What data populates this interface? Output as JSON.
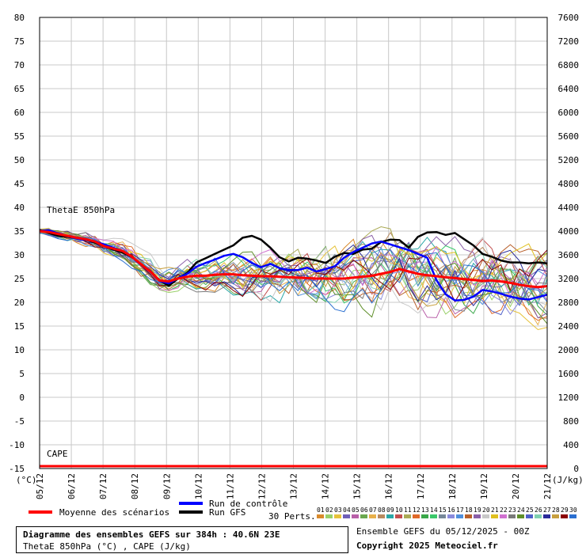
{
  "chart_data": {
    "type": "line",
    "title": "Diagramme des ensembles GEFS sur 384h : 40.6N 23E",
    "subtitle": "ThetaE 850hPa (°C) , CAPE (J/kg)",
    "panel_labels": {
      "thetae": "ThetaE 850hPa",
      "cape": "CAPE"
    },
    "left_axis": {
      "unit": "(°C)",
      "range": [
        -15,
        80
      ],
      "ticks": [
        80,
        75,
        70,
        65,
        60,
        55,
        50,
        45,
        40,
        35,
        30,
        25,
        20,
        15,
        10,
        5,
        0,
        -5,
        -10,
        -15
      ]
    },
    "right_axis": {
      "unit": "(J/kg)",
      "range": [
        0,
        7600
      ],
      "ticks": [
        7600,
        7200,
        6800,
        6400,
        6000,
        5600,
        5200,
        4800,
        4400,
        4000,
        3600,
        3200,
        2800,
        2400,
        2000,
        1600,
        1200,
        800,
        400,
        0
      ]
    },
    "x_axis": {
      "categories": [
        "05/12",
        "06/12",
        "07/12",
        "08/12",
        "09/12",
        "10/12",
        "11/12",
        "12/12",
        "13/12",
        "14/12",
        "15/12",
        "16/12",
        "17/12",
        "18/12",
        "19/12",
        "20/12",
        "21/12"
      ]
    },
    "grid": true,
    "legend": {
      "mean": "Moyenne des scénarios",
      "control": "Run de contrôle",
      "gfs": "Run GFS",
      "perts_label": "30 Perts.",
      "pert_numbers": [
        "01",
        "02",
        "03",
        "04",
        "05",
        "06",
        "07",
        "08",
        "09",
        "10",
        "11",
        "12",
        "13",
        "14",
        "15",
        "16",
        "17",
        "18",
        "19",
        "20",
        "21",
        "22",
        "23",
        "24",
        "25",
        "26",
        "27",
        "28",
        "29",
        "30"
      ],
      "pert_colors": [
        "#d98a2b",
        "#9ad06a",
        "#e6c23a",
        "#6f5fb8",
        "#b85fa8",
        "#6aa84f",
        "#e8b04a",
        "#b88a5f",
        "#2aa7a7",
        "#c24f4f",
        "#aaaa55",
        "#e06a2a",
        "#3aa84a",
        "#3ac86a",
        "#778899",
        "#8a8adc",
        "#4f8fdc",
        "#b85f2a",
        "#8a5fa8",
        "#c8c8c8",
        "#e0c020",
        "#d070d0",
        "#7a7a7a",
        "#5f8f2a",
        "#4f5fc8",
        "#7fd0b0",
        "#2a2a9a",
        "#c8a040",
        "#8b0000",
        "#2a6fd0"
      ]
    },
    "series": [
      {
        "name": "Moyenne des scénarios",
        "color": "#ff0000",
        "values": [
          35,
          34.8,
          34.4,
          34,
          33.6,
          33.3,
          32.8,
          31.8,
          31.3,
          30.8,
          29.6,
          28,
          26.5,
          24.6,
          24.4,
          25,
          25.4,
          25.6,
          25.6,
          25.8,
          25.9,
          25.9,
          25.7,
          25.6,
          25.5,
          25.5,
          25.4,
          25.3,
          25.2,
          25.1,
          25,
          25,
          25,
          25,
          25.2,
          25.4,
          25.6,
          26,
          26.4,
          27,
          26.5,
          26,
          25.7,
          25.5,
          25.3,
          25.1,
          24.9,
          24.7,
          24.5,
          24.6,
          24.4,
          24.1,
          23.7,
          23.4,
          23.2,
          23.4
        ]
      },
      {
        "name": "Run de contrôle",
        "color": "#0000ff",
        "values": [
          35,
          35.2,
          34.5,
          34,
          33.4,
          33.2,
          32.8,
          32.2,
          31.5,
          30.8,
          29.5,
          27.9,
          26.4,
          24.5,
          24,
          25.1,
          26,
          27.5,
          28.3,
          29,
          29.8,
          30.2,
          29.5,
          28.3,
          27.4,
          28.1,
          27.2,
          26.8,
          26.8,
          27.3,
          26.5,
          27,
          27.6,
          29.4,
          30.6,
          31.5,
          32.4,
          32.8,
          32.2,
          31.6,
          31,
          30.2,
          29.4,
          24.7,
          21.7,
          20.4,
          20.5,
          21.2,
          22.6,
          22.3,
          21.8,
          21.2,
          20.8,
          20.6,
          21.1,
          21.6
        ]
      },
      {
        "name": "Run GFS",
        "color": "#000000",
        "values": [
          35.2,
          34.6,
          34,
          33.8,
          33.5,
          33.2,
          32.6,
          31.8,
          31.1,
          30.5,
          29.5,
          28,
          26.6,
          24.6,
          23.5,
          25,
          26.2,
          28.4,
          29.3,
          30.2,
          31.1,
          32,
          33.6,
          34,
          33.2,
          31.5,
          29.5,
          28.6,
          29.4,
          29.2,
          28.8,
          28.3,
          29.6,
          30.4,
          30.2,
          31.1,
          31.3,
          32.7,
          33.2,
          33.1,
          31.5,
          33.8,
          34.7,
          34.8,
          34.2,
          34.6,
          33.3,
          32,
          30.2,
          29.6,
          28.8,
          28.4,
          28.4,
          28.2,
          28.4,
          28.2
        ]
      }
    ],
    "perturbations_count": 30,
    "cape_series": [
      {
        "name": "Moyenne des scénarios",
        "color": "#ff0000",
        "values_jkg": [
          40,
          40,
          40,
          40,
          40,
          40,
          40,
          40,
          40,
          40,
          40,
          40,
          40,
          40,
          40,
          40,
          40,
          40
        ]
      }
    ]
  },
  "footer": {
    "title": "Diagramme des ensembles GEFS sur 384h : 40.6N 23E",
    "subtitle": "ThetaE 850hPa (°C) , CAPE (J/kg)",
    "ensemble": "Ensemble GEFS du 05/12/2025 - 00Z",
    "copyright": "Copyright 2025 Meteociel.fr"
  }
}
